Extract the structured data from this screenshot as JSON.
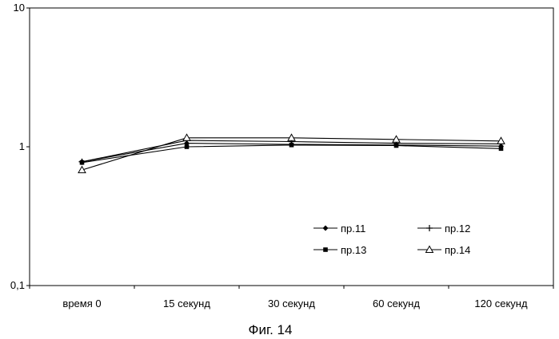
{
  "chart_data": {
    "type": "line",
    "yscale": "log",
    "ylim": [
      0.1,
      10
    ],
    "yticks": [
      "0,1",
      "1",
      "10"
    ],
    "categories": [
      "время 0",
      "15 секунд",
      "30 секунд",
      "60 секунд",
      "120 секунд"
    ],
    "series": [
      {
        "name": "пр.11",
        "marker": "diamond",
        "values": [
          0.78,
          1.06,
          1.04,
          1.03,
          1.01
        ]
      },
      {
        "name": "пр.12",
        "marker": "plus",
        "values": [
          0.78,
          1.11,
          1.09,
          1.06,
          1.05
        ]
      },
      {
        "name": "пр.13",
        "marker": "square",
        "values": [
          0.77,
          1.0,
          1.03,
          1.02,
          0.97
        ]
      },
      {
        "name": "пр.14",
        "marker": "triangle",
        "values": [
          0.68,
          1.16,
          1.16,
          1.13,
          1.1
        ]
      }
    ],
    "legend": "bottom-right",
    "grid": false,
    "colors": {
      "line": "#000000",
      "axis": "#000000"
    }
  },
  "caption": "Фиг. 14"
}
